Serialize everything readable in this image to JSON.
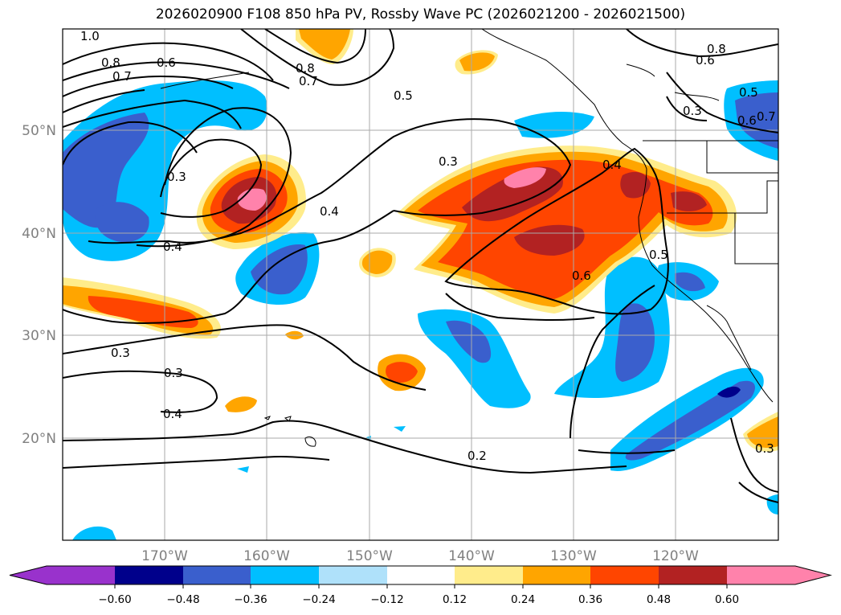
{
  "title": "2026020900 F108 850 hPa PV, Rossby Wave PC (2026021200 - 2026021500)",
  "map": {
    "lon_ticks": [
      "170°W",
      "160°W",
      "150°W",
      "140°W",
      "130°W",
      "120°W"
    ],
    "lat_ticks": [
      "50°N",
      "40°N",
      "30°N",
      "20°N"
    ],
    "contour_labels": [
      "1.0",
      "0.8",
      "0.7",
      "0.6",
      "0.8",
      "0.7",
      "0.5",
      "0.8",
      "0.6",
      "0.5",
      "0.3",
      "0.6",
      "0.7",
      "0.3",
      "0.3",
      "0.4",
      "0.4",
      "0.4",
      "0.5",
      "0.6",
      "0.3",
      "0.3",
      "0.4",
      "0.2",
      "0.3"
    ]
  },
  "colorbar": {
    "ticks": [
      "−0.60",
      "−0.48",
      "−0.36",
      "−0.24",
      "−0.12",
      "0.12",
      "0.24",
      "0.36",
      "0.48",
      "0.60"
    ],
    "colors": [
      "#9932cc",
      "#00008b",
      "#3a5fcd",
      "#00bfff",
      "#afe1fa",
      "#ffffff",
      "#ffec8b",
      "#ffa500",
      "#ff4500",
      "#b22222",
      "#ff82ab"
    ]
  }
}
